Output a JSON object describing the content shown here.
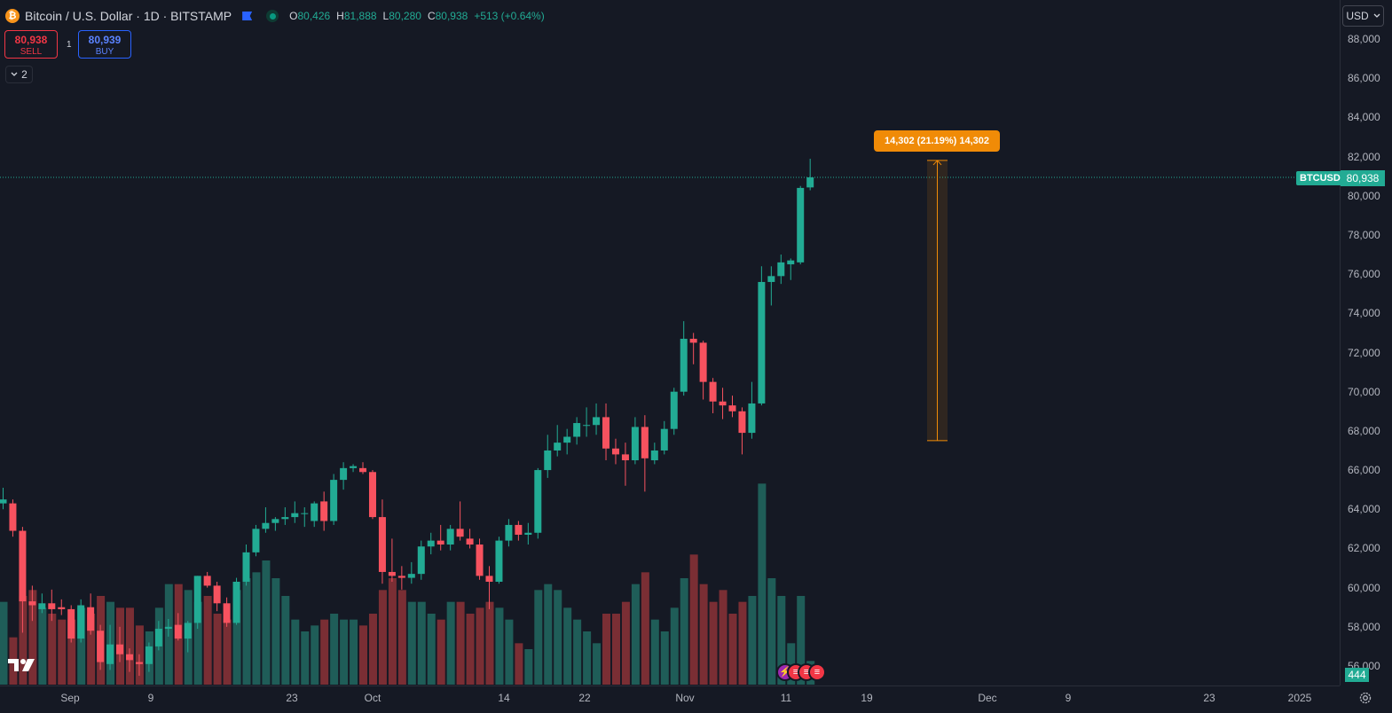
{
  "header": {
    "coin_glyph": "₿",
    "symbol_title": "Bitcoin / U.S. Dollar · 1D · BITSTAMP",
    "ohlc": {
      "o_label": "O",
      "o": "80,426",
      "h_label": "H",
      "h": "81,888",
      "l_label": "L",
      "l": "80,280",
      "c_label": "C",
      "c": "80,938",
      "change": "+513 (+0.64%)"
    }
  },
  "trade": {
    "sell_price": "80,938",
    "sell_label": "SELL",
    "spread": "1",
    "buy_price": "80,939",
    "buy_label": "BUY"
  },
  "indicators_toggle": {
    "count": "2"
  },
  "measure": {
    "label": "14,302 (21.19%) 14,302",
    "start_price": 67500,
    "end_price": 81802
  },
  "price_axis": {
    "currency_button": "USD",
    "ticks": [
      "88,000",
      "86,000",
      "84,000",
      "82,000",
      "80,000",
      "78,000",
      "76,000",
      "74,000",
      "72,000",
      "70,000",
      "68,000",
      "66,000",
      "64,000",
      "62,000",
      "60,000",
      "58,000",
      "56,000"
    ],
    "tick_values": [
      88000,
      86000,
      84000,
      82000,
      80000,
      78000,
      76000,
      74000,
      72000,
      70000,
      68000,
      66000,
      64000,
      62000,
      60000,
      58000,
      56000
    ],
    "symbol_tag": "BTCUSD",
    "last_price": "80,938",
    "last_price_value": 80938,
    "volume_tag": "444"
  },
  "time_axis": {
    "labels": [
      "Sep",
      "9",
      "23",
      "Oct",
      "14",
      "22",
      "Nov",
      "11",
      "19",
      "Dec",
      "9",
      "23",
      "2025"
    ]
  },
  "colors": {
    "up": "#22ab94",
    "down": "#f7525f",
    "up_volume": "#1f5d58",
    "down_volume": "#7a2e34",
    "measure": "#f08b07",
    "background": "#151924"
  },
  "icons": {
    "logo": "tradingview-logo",
    "settings": "gear-icon",
    "event_1": "lightning-icon",
    "event_2": "us-flag-icon"
  },
  "chart_data": {
    "type": "candlestick",
    "symbol": "BTCUSD",
    "interval": "1D",
    "ylim": [
      55500,
      88600
    ],
    "candles": [
      {
        "o": 64300,
        "h": 65100,
        "l": 64000,
        "c": 64500
      },
      {
        "o": 64300,
        "h": 64500,
        "l": 62600,
        "c": 62900
      },
      {
        "o": 62900,
        "h": 63100,
        "l": 57700,
        "c": 59300
      },
      {
        "o": 59300,
        "h": 60100,
        "l": 58300,
        "c": 59100
      },
      {
        "o": 58900,
        "h": 59700,
        "l": 58700,
        "c": 59200
      },
      {
        "o": 59200,
        "h": 59900,
        "l": 58300,
        "c": 58900
      },
      {
        "o": 59000,
        "h": 59400,
        "l": 58600,
        "c": 58900
      },
      {
        "o": 58900,
        "h": 59100,
        "l": 57200,
        "c": 57400
      },
      {
        "o": 57400,
        "h": 59400,
        "l": 57200,
        "c": 59100
      },
      {
        "o": 59000,
        "h": 59700,
        "l": 57600,
        "c": 57800
      },
      {
        "o": 57800,
        "h": 58100,
        "l": 55800,
        "c": 56200
      },
      {
        "o": 56100,
        "h": 58100,
        "l": 55800,
        "c": 57100
      },
      {
        "o": 57100,
        "h": 58000,
        "l": 56200,
        "c": 56600
      },
      {
        "o": 56600,
        "h": 56900,
        "l": 55700,
        "c": 56300
      },
      {
        "o": 56200,
        "h": 56600,
        "l": 55500,
        "c": 56100
      },
      {
        "o": 56100,
        "h": 57200,
        "l": 55700,
        "c": 57000
      },
      {
        "o": 57000,
        "h": 58300,
        "l": 56800,
        "c": 57900
      },
      {
        "o": 57900,
        "h": 58400,
        "l": 57500,
        "c": 58000
      },
      {
        "o": 58100,
        "h": 58700,
        "l": 57300,
        "c": 57400
      },
      {
        "o": 57400,
        "h": 58300,
        "l": 56700,
        "c": 58200
      },
      {
        "o": 58200,
        "h": 60600,
        "l": 57900,
        "c": 60600
      },
      {
        "o": 60600,
        "h": 60800,
        "l": 60000,
        "c": 60100
      },
      {
        "o": 60100,
        "h": 60300,
        "l": 58800,
        "c": 59200
      },
      {
        "o": 59200,
        "h": 59500,
        "l": 58000,
        "c": 58200
      },
      {
        "o": 58200,
        "h": 60500,
        "l": 58100,
        "c": 60300
      },
      {
        "o": 60300,
        "h": 62200,
        "l": 60100,
        "c": 61800
      },
      {
        "o": 61800,
        "h": 63200,
        "l": 61600,
        "c": 63000
      },
      {
        "o": 63000,
        "h": 64100,
        "l": 62800,
        "c": 63300
      },
      {
        "o": 63300,
        "h": 63600,
        "l": 62900,
        "c": 63500
      },
      {
        "o": 63500,
        "h": 64100,
        "l": 63200,
        "c": 63600
      },
      {
        "o": 63600,
        "h": 64400,
        "l": 63300,
        "c": 63800
      },
      {
        "o": 63800,
        "h": 64100,
        "l": 63100,
        "c": 63800
      },
      {
        "o": 63400,
        "h": 64400,
        "l": 63100,
        "c": 64300
      },
      {
        "o": 64400,
        "h": 64900,
        "l": 62900,
        "c": 63400
      },
      {
        "o": 63400,
        "h": 65800,
        "l": 63200,
        "c": 65500
      },
      {
        "o": 65500,
        "h": 66400,
        "l": 65000,
        "c": 66100
      },
      {
        "o": 66100,
        "h": 66300,
        "l": 65900,
        "c": 66200
      },
      {
        "o": 66100,
        "h": 66400,
        "l": 65800,
        "c": 65900
      },
      {
        "o": 65900,
        "h": 66000,
        "l": 63500,
        "c": 63600
      },
      {
        "o": 63600,
        "h": 64500,
        "l": 60200,
        "c": 60800
      },
      {
        "o": 60800,
        "h": 62500,
        "l": 60300,
        "c": 60600
      },
      {
        "o": 60600,
        "h": 61100,
        "l": 59900,
        "c": 60500
      },
      {
        "o": 60500,
        "h": 61300,
        "l": 60200,
        "c": 60700
      },
      {
        "o": 60700,
        "h": 62400,
        "l": 60400,
        "c": 62100
      },
      {
        "o": 62100,
        "h": 62800,
        "l": 61700,
        "c": 62400
      },
      {
        "o": 62400,
        "h": 63200,
        "l": 61900,
        "c": 62200
      },
      {
        "o": 62200,
        "h": 63200,
        "l": 61900,
        "c": 63000
      },
      {
        "o": 63000,
        "h": 64400,
        "l": 62400,
        "c": 62600
      },
      {
        "o": 62500,
        "h": 63000,
        "l": 62000,
        "c": 62200
      },
      {
        "o": 62200,
        "h": 62500,
        "l": 60400,
        "c": 60600
      },
      {
        "o": 60600,
        "h": 61100,
        "l": 58900,
        "c": 60300
      },
      {
        "o": 60300,
        "h": 62600,
        "l": 60200,
        "c": 62400
      },
      {
        "o": 62400,
        "h": 63500,
        "l": 62100,
        "c": 63200
      },
      {
        "o": 63200,
        "h": 63400,
        "l": 62400,
        "c": 62700
      },
      {
        "o": 62700,
        "h": 63300,
        "l": 62200,
        "c": 62800
      },
      {
        "o": 62800,
        "h": 66100,
        "l": 62500,
        "c": 66000
      },
      {
        "o": 66000,
        "h": 67800,
        "l": 65600,
        "c": 67000
      },
      {
        "o": 67000,
        "h": 68300,
        "l": 66700,
        "c": 67400
      },
      {
        "o": 67400,
        "h": 68100,
        "l": 66800,
        "c": 67700
      },
      {
        "o": 67700,
        "h": 68700,
        "l": 67300,
        "c": 68400
      },
      {
        "o": 68300,
        "h": 69200,
        "l": 67700,
        "c": 68300
      },
      {
        "o": 68300,
        "h": 69400,
        "l": 67800,
        "c": 68700
      },
      {
        "o": 68700,
        "h": 69400,
        "l": 66500,
        "c": 67100
      },
      {
        "o": 67100,
        "h": 67600,
        "l": 66300,
        "c": 66800
      },
      {
        "o": 66800,
        "h": 67400,
        "l": 65200,
        "c": 66500
      },
      {
        "o": 66500,
        "h": 68700,
        "l": 66300,
        "c": 68200
      },
      {
        "o": 68200,
        "h": 68800,
        "l": 64900,
        "c": 66600
      },
      {
        "o": 66500,
        "h": 67400,
        "l": 66300,
        "c": 67000
      },
      {
        "o": 67000,
        "h": 68500,
        "l": 66800,
        "c": 68100
      },
      {
        "o": 68100,
        "h": 70200,
        "l": 67800,
        "c": 70000
      },
      {
        "o": 70000,
        "h": 73600,
        "l": 69800,
        "c": 72700
      },
      {
        "o": 72700,
        "h": 73000,
        "l": 71400,
        "c": 72500
      },
      {
        "o": 72500,
        "h": 72600,
        "l": 69600,
        "c": 70500
      },
      {
        "o": 70500,
        "h": 70700,
        "l": 68900,
        "c": 69500
      },
      {
        "o": 69500,
        "h": 70200,
        "l": 68600,
        "c": 69300
      },
      {
        "o": 69300,
        "h": 69800,
        "l": 68700,
        "c": 69000
      },
      {
        "o": 69000,
        "h": 69200,
        "l": 66800,
        "c": 67900
      },
      {
        "o": 67900,
        "h": 70500,
        "l": 67600,
        "c": 69400
      },
      {
        "o": 69400,
        "h": 76400,
        "l": 69300,
        "c": 75600
      },
      {
        "o": 75600,
        "h": 76400,
        "l": 74400,
        "c": 75900
      },
      {
        "o": 75900,
        "h": 77000,
        "l": 75500,
        "c": 76600
      },
      {
        "o": 76500,
        "h": 76800,
        "l": 75700,
        "c": 76700
      },
      {
        "o": 76600,
        "h": 80500,
        "l": 76500,
        "c": 80400
      },
      {
        "o": 80426,
        "h": 81888,
        "l": 80280,
        "c": 80938
      }
    ],
    "volume_scale_max": 45000,
    "volumes": [
      14000,
      8000,
      15000,
      16000,
      13000,
      12000,
      11000,
      11000,
      13000,
      12000,
      15000,
      14000,
      13000,
      13000,
      10000,
      9000,
      13000,
      17000,
      17000,
      16000,
      14000,
      15000,
      12000,
      11000,
      16000,
      18000,
      19000,
      21000,
      18000,
      15000,
      11000,
      9000,
      10000,
      11000,
      12000,
      11000,
      11000,
      10000,
      12000,
      16000,
      18000,
      16000,
      14000,
      14000,
      12000,
      11000,
      14000,
      14000,
      12000,
      13000,
      14000,
      13000,
      11000,
      7000,
      6000,
      16000,
      17000,
      16000,
      13000,
      11000,
      9000,
      7000,
      12000,
      12000,
      14000,
      17000,
      19000,
      11000,
      9000,
      13000,
      18000,
      22000,
      17000,
      14000,
      16000,
      12000,
      14000,
      15000,
      34000,
      18000,
      15000,
      7000,
      15000,
      4000
    ],
    "first_candle_x": 3.5,
    "candle_spacing": 10.96,
    "time_labels": [
      "Sep",
      "9",
      "23",
      "Oct",
      "14",
      "22",
      "Nov",
      "11",
      "19",
      "Dec",
      "9",
      "23",
      "2025"
    ]
  }
}
